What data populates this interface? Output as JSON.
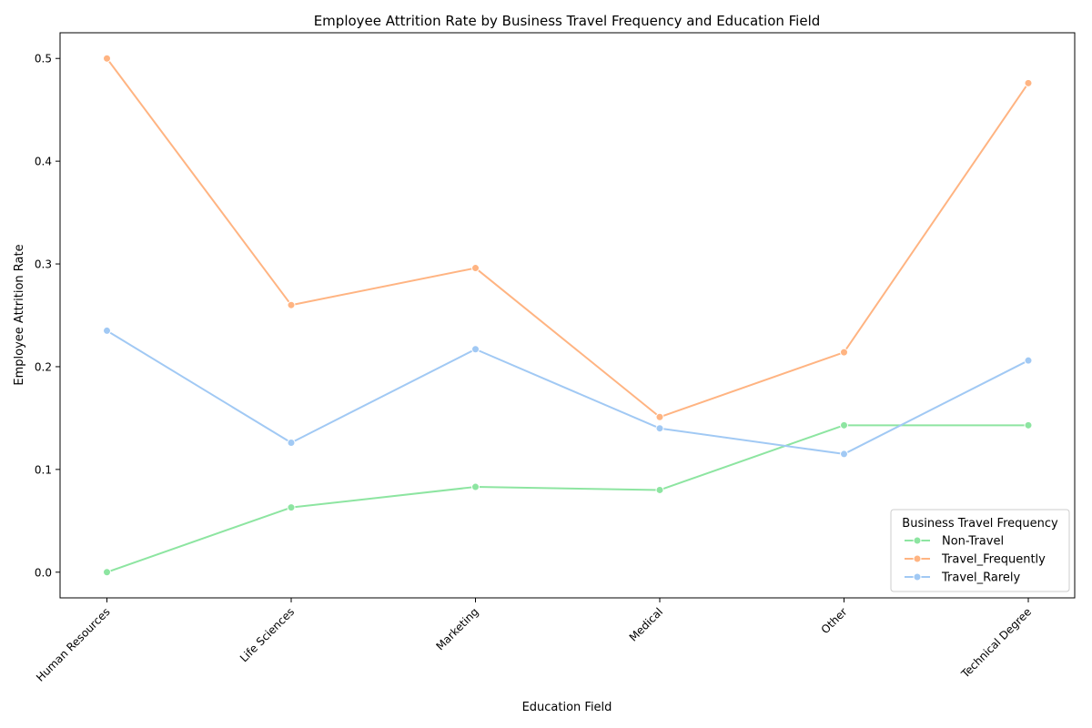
{
  "chart_data": {
    "type": "line",
    "title": "Employee Attrition Rate by Business Travel Frequency and Education Field",
    "xlabel": "Education Field",
    "ylabel": "Employee Attrition Rate",
    "categories": [
      "Human Resources",
      "Life Sciences",
      "Marketing",
      "Medical",
      "Other",
      "Technical Degree"
    ],
    "ylim": [
      -0.025,
      0.525
    ],
    "yticks": [
      0.0,
      0.1,
      0.2,
      0.3,
      0.4,
      0.5
    ],
    "ytick_labels": [
      "0.0",
      "0.1",
      "0.2",
      "0.3",
      "0.4",
      "0.5"
    ],
    "grid": false,
    "legend": {
      "title": "Business Travel Frequency",
      "position": "lower-right"
    },
    "series": [
      {
        "name": "Non-Travel",
        "color": "#8de5a1",
        "values": [
          0.0,
          0.063,
          0.083,
          0.08,
          0.143,
          0.143
        ]
      },
      {
        "name": "Travel_Frequently",
        "color": "#ffb482",
        "values": [
          0.5,
          0.26,
          0.296,
          0.151,
          0.214,
          0.476
        ]
      },
      {
        "name": "Travel_Rarely",
        "color": "#a1c9f4",
        "values": [
          0.235,
          0.126,
          0.217,
          0.14,
          0.115,
          0.206
        ]
      }
    ]
  }
}
